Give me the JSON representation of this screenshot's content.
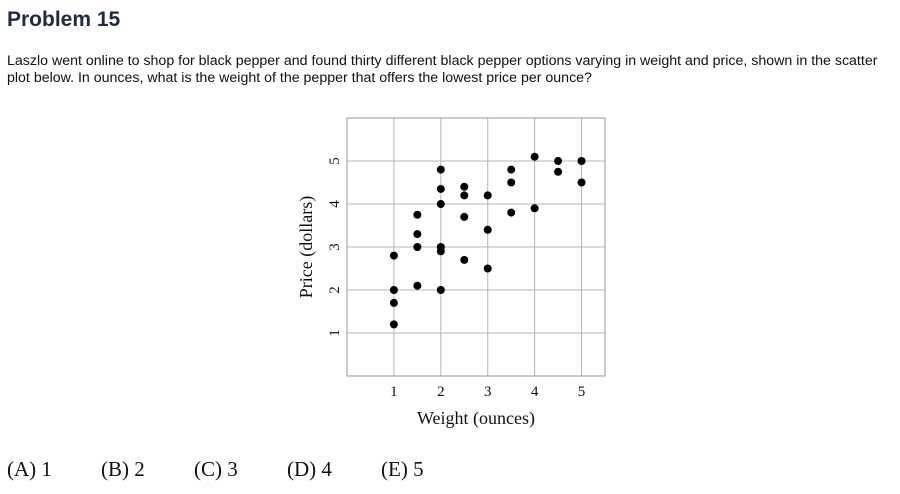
{
  "problem": {
    "title": "Problem 15",
    "question": "Laszlo went online to shop for black pepper and found thirty different black pepper options varying in weight and price, shown in the scatter plot below. In ounces, what is the weight of the pepper that offers the lowest price per ounce?"
  },
  "chart_data": {
    "type": "scatter",
    "xlabel": "Weight (ounces)",
    "ylabel": "Price (dollars)",
    "xlim": [
      0,
      5.5
    ],
    "ylim": [
      0,
      6
    ],
    "xticks": [
      "1",
      "2",
      "3",
      "4",
      "5"
    ],
    "yticks": [
      "1",
      "2",
      "3",
      "4",
      "5"
    ],
    "grid": true,
    "points": [
      {
        "x": 1,
        "y": 1.2
      },
      {
        "x": 1,
        "y": 1.7
      },
      {
        "x": 1,
        "y": 2.0
      },
      {
        "x": 1,
        "y": 2.8
      },
      {
        "x": 1.5,
        "y": 2.1
      },
      {
        "x": 1.5,
        "y": 3.0
      },
      {
        "x": 1.5,
        "y": 3.3
      },
      {
        "x": 1.5,
        "y": 3.75
      },
      {
        "x": 2,
        "y": 2.0
      },
      {
        "x": 2,
        "y": 2.9
      },
      {
        "x": 2,
        "y": 3.0
      },
      {
        "x": 2,
        "y": 4.0
      },
      {
        "x": 2,
        "y": 4.35
      },
      {
        "x": 2,
        "y": 4.8
      },
      {
        "x": 2.5,
        "y": 2.7
      },
      {
        "x": 2.5,
        "y": 3.7
      },
      {
        "x": 2.5,
        "y": 4.2
      },
      {
        "x": 2.5,
        "y": 4.4
      },
      {
        "x": 3,
        "y": 2.5
      },
      {
        "x": 3,
        "y": 3.4
      },
      {
        "x": 3,
        "y": 4.2
      },
      {
        "x": 3.5,
        "y": 3.8
      },
      {
        "x": 3.5,
        "y": 4.5
      },
      {
        "x": 3.5,
        "y": 4.8
      },
      {
        "x": 4,
        "y": 3.9
      },
      {
        "x": 4,
        "y": 5.1
      },
      {
        "x": 4.5,
        "y": 4.75
      },
      {
        "x": 4.5,
        "y": 5.0
      },
      {
        "x": 5,
        "y": 4.5
      },
      {
        "x": 5,
        "y": 5.0
      }
    ]
  },
  "choices": [
    {
      "letter": "(A)",
      "value": "1"
    },
    {
      "letter": "(B)",
      "value": "2"
    },
    {
      "letter": "(C)",
      "value": "3"
    },
    {
      "letter": "(D)",
      "value": "4"
    },
    {
      "letter": "(E)",
      "value": "5"
    }
  ]
}
